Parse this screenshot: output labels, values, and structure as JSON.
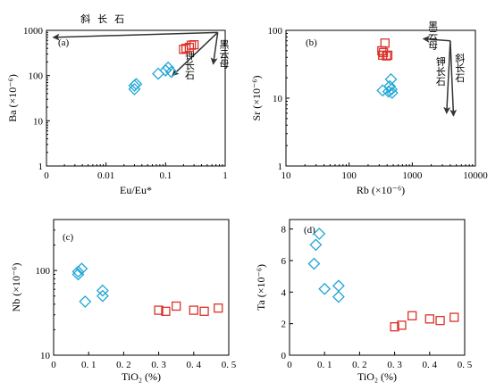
{
  "colors": {
    "diamond": "#1fa6d6",
    "square": "#d9342b",
    "axis": "#000000"
  },
  "chart_data": [
    {
      "panel": "(a)",
      "type": "scatter",
      "xlabel": "Eu/Eu*",
      "ylabel": "Ba (×10⁻⁶)",
      "xscale": "log",
      "yscale": "log",
      "xlim": [
        0.001,
        1
      ],
      "ylim": [
        1,
        1000
      ],
      "xticks": [
        {
          "v": 0.001,
          "t": "0"
        },
        {
          "v": 0.01,
          "t": "0.01"
        },
        {
          "v": 0.1,
          "t": "0.1"
        },
        {
          "v": 1,
          "t": "1"
        }
      ],
      "yticks": [
        {
          "v": 1,
          "t": "1"
        },
        {
          "v": 10,
          "t": "10"
        },
        {
          "v": 100,
          "t": "100"
        },
        {
          "v": 1000,
          "t": "1000"
        }
      ],
      "series": [
        {
          "marker": "diamond",
          "points": [
            [
              0.03,
              60
            ],
            [
              0.03,
              50
            ],
            [
              0.032,
              65
            ],
            [
              0.075,
              110
            ],
            [
              0.1,
              130
            ],
            [
              0.11,
              150
            ],
            [
              0.125,
              120
            ]
          ]
        },
        {
          "marker": "square",
          "points": [
            [
              0.2,
              380
            ],
            [
              0.22,
              400
            ],
            [
              0.25,
              420
            ],
            [
              0.27,
              470
            ],
            [
              0.3,
              480
            ]
          ]
        }
      ],
      "vectors": [
        {
          "label": "斜长石",
          "from": [
            0.75,
            900
          ],
          "to": [
            0.0013,
            700
          ],
          "label_at": [
            0.01,
            1500
          ],
          "vertical": false
        },
        {
          "label": "黑云母",
          "from": [
            0.75,
            900
          ],
          "to": [
            0.63,
            180
          ],
          "label_at": [
            0.95,
            300
          ],
          "vertical": true
        },
        {
          "label": "钾长石",
          "from": [
            0.75,
            900
          ],
          "to": [
            0.13,
            100
          ],
          "label_at": [
            0.25,
            170
          ],
          "vertical": true
        }
      ]
    },
    {
      "panel": "(b)",
      "type": "scatter",
      "xlabel": "Rb (×10⁻⁶)",
      "ylabel": "Sr (×10⁻⁶)",
      "xscale": "log",
      "yscale": "log",
      "xlim": [
        10,
        10000
      ],
      "ylim": [
        1,
        100
      ],
      "xticks": [
        {
          "v": 10,
          "t": "10"
        },
        {
          "v": 100,
          "t": "100"
        },
        {
          "v": 1000,
          "t": "1000"
        },
        {
          "v": 10000,
          "t": "10000"
        }
      ],
      "yticks": [
        {
          "v": 1,
          "t": "1"
        },
        {
          "v": 10,
          "t": "10"
        },
        {
          "v": 100,
          "t": "100"
        }
      ],
      "series": [
        {
          "marker": "diamond",
          "points": [
            [
              340,
              13
            ],
            [
              420,
              12.5
            ],
            [
              440,
              15
            ],
            [
              460,
              19
            ],
            [
              470,
              13.5
            ],
            [
              480,
              12
            ]
          ]
        },
        {
          "marker": "square",
          "points": [
            [
              330,
              50
            ],
            [
              340,
              43
            ],
            [
              350,
              47
            ],
            [
              370,
              65
            ],
            [
              390,
              42
            ],
            [
              410,
              43
            ]
          ]
        }
      ],
      "vectors": [
        {
          "label": "黑云母",
          "from": [
            4000,
            70
          ],
          "to": [
            1500,
            75
          ],
          "label_at": [
            2100,
            85
          ],
          "vertical": true
        },
        {
          "label": "钾长石",
          "from": [
            4000,
            70
          ],
          "to": [
            3500,
            6
          ],
          "label_at": [
            2800,
            25
          ],
          "vertical": true
        },
        {
          "label": "斜长石",
          "from": [
            4000,
            70
          ],
          "to": [
            4500,
            5.5
          ],
          "label_at": [
            5600,
            28
          ],
          "vertical": true
        }
      ]
    },
    {
      "panel": "(c)",
      "type": "scatter",
      "xlabel": "TiO₂ (%)",
      "ylabel": "Nb (×10⁻⁶)",
      "xscale": "linear",
      "yscale": "log",
      "xlim": [
        0,
        0.5
      ],
      "ylim": [
        10,
        400
      ],
      "xticks": [
        {
          "v": 0,
          "t": "0"
        },
        {
          "v": 0.1,
          "t": "0. 1"
        },
        {
          "v": 0.2,
          "t": "0. 2"
        },
        {
          "v": 0.3,
          "t": "0. 3"
        },
        {
          "v": 0.4,
          "t": "0. 4"
        },
        {
          "v": 0.5,
          "t": "0. 5"
        }
      ],
      "yticks": [
        {
          "v": 10,
          "t": "10"
        },
        {
          "v": 100,
          "t": "100"
        }
      ],
      "series": [
        {
          "marker": "diamond",
          "points": [
            [
              0.07,
              90
            ],
            [
              0.07,
              97
            ],
            [
              0.08,
              105
            ],
            [
              0.09,
              43
            ],
            [
              0.14,
              58
            ],
            [
              0.14,
              50
            ]
          ]
        },
        {
          "marker": "square",
          "points": [
            [
              0.3,
              34
            ],
            [
              0.32,
              33
            ],
            [
              0.35,
              38
            ],
            [
              0.4,
              34
            ],
            [
              0.43,
              33
            ],
            [
              0.47,
              36
            ]
          ]
        }
      ],
      "vectors": []
    },
    {
      "panel": "(d)",
      "type": "scatter",
      "xlabel": "TiO₂ (%)",
      "ylabel": "Ta (×10⁻⁶)",
      "xscale": "linear",
      "yscale": "linear",
      "xlim": [
        0,
        0.5
      ],
      "ylim": [
        0,
        8.6
      ],
      "xticks": [
        {
          "v": 0,
          "t": "0"
        },
        {
          "v": 0.1,
          "t": "0. 1"
        },
        {
          "v": 0.2,
          "t": "0. 2"
        },
        {
          "v": 0.3,
          "t": "0. 3"
        },
        {
          "v": 0.4,
          "t": "0. 4"
        },
        {
          "v": 0.5,
          "t": "0. 5"
        }
      ],
      "yticks": [
        {
          "v": 0,
          "t": "0"
        },
        {
          "v": 2,
          "t": "2"
        },
        {
          "v": 4,
          "t": "4"
        },
        {
          "v": 6,
          "t": "6"
        },
        {
          "v": 8,
          "t": "8"
        }
      ],
      "series": [
        {
          "marker": "diamond",
          "points": [
            [
              0.07,
              5.8
            ],
            [
              0.075,
              7.0
            ],
            [
              0.085,
              7.7
            ],
            [
              0.1,
              4.2
            ],
            [
              0.14,
              4.4
            ],
            [
              0.14,
              3.7
            ]
          ]
        },
        {
          "marker": "square",
          "points": [
            [
              0.3,
              1.8
            ],
            [
              0.32,
              1.9
            ],
            [
              0.35,
              2.5
            ],
            [
              0.4,
              2.3
            ],
            [
              0.43,
              2.2
            ],
            [
              0.47,
              2.4
            ]
          ]
        }
      ],
      "vectors": []
    }
  ]
}
